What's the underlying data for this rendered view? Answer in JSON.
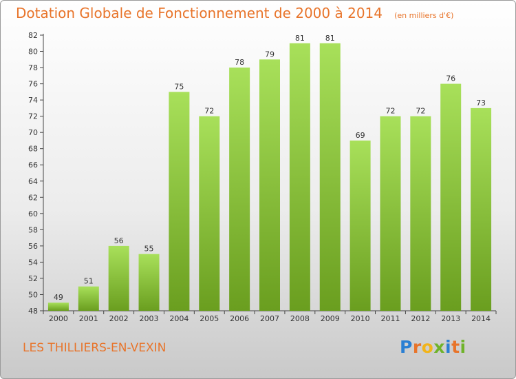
{
  "header": {
    "title": "Dotation Globale de Fonctionnement de 2000 à 2014",
    "subtitle": "(en milliers d'€)"
  },
  "footer": {
    "commune": "LES THILLIERS-EN-VEXIN",
    "logo": {
      "letters": [
        "P",
        "r",
        "o",
        "x",
        "i",
        "t",
        "i"
      ],
      "colors": [
        "#2a7fd3",
        "#e8742a",
        "#f2b41a",
        "#6fb32a",
        "#2a7fd3",
        "#e8742a",
        "#6fb32a"
      ]
    }
  },
  "colors": {
    "bar_light": "#a8e05a",
    "bar_dark": "#6a9e1f",
    "title": "#e8742a"
  },
  "chart_data": {
    "type": "bar",
    "categories": [
      "2000",
      "2001",
      "2002",
      "2003",
      "2004",
      "2005",
      "2006",
      "2007",
      "2008",
      "2009",
      "2010",
      "2011",
      "2012",
      "2013",
      "2014"
    ],
    "values": [
      49,
      51,
      56,
      55,
      75,
      72,
      78,
      79,
      81,
      81,
      69,
      72,
      72,
      76,
      73
    ],
    "data_labels": [
      "49",
      "51",
      "56",
      "55",
      "75",
      "72",
      "78",
      "79",
      "81",
      "81",
      "69",
      "72",
      "72",
      "76",
      "73"
    ],
    "ylim": [
      48,
      82
    ],
    "yticks": [
      48,
      50,
      52,
      54,
      56,
      58,
      60,
      62,
      64,
      66,
      68,
      70,
      72,
      74,
      76,
      78,
      80,
      82
    ],
    "grid": false
  }
}
